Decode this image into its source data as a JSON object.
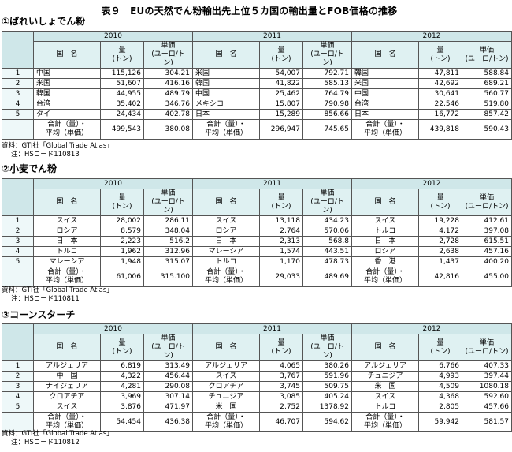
{
  "title": "表９　EUの天然でん粉輸出先上位５カ国の輸出量とFOB価格の推移",
  "years": [
    "2010",
    "2011",
    "2012"
  ],
  "headers": {
    "country": "国　名",
    "qty": "量\n(トン)",
    "price": "単価\n(ユーロ/トン)"
  },
  "total_label": "合計（量）・\n平均（単価）",
  "sections": [
    {
      "heading": "①ばれいしょでん粉",
      "rows": [
        {
          "rank": "1",
          "y2010": [
            "中国",
            "115,126",
            "304.21"
          ],
          "y2011": [
            "米国",
            "54,007",
            "792.71"
          ],
          "y2012": [
            "韓国",
            "47,811",
            "588.84"
          ]
        },
        {
          "rank": "2",
          "y2010": [
            "米国",
            "51,607",
            "416.16"
          ],
          "y2011": [
            "韓国",
            "41,822",
            "585.13"
          ],
          "y2012": [
            "米国",
            "42,692",
            "689.21"
          ]
        },
        {
          "rank": "3",
          "y2010": [
            "韓国",
            "44,955",
            "489.79"
          ],
          "y2011": [
            "中国",
            "25,462",
            "764.79"
          ],
          "y2012": [
            "中国",
            "30,641",
            "560.77"
          ]
        },
        {
          "rank": "4",
          "y2010": [
            "台湾",
            "35,402",
            "346.76"
          ],
          "y2011": [
            "メキシコ",
            "15,807",
            "790.98"
          ],
          "y2012": [
            "台湾",
            "22,546",
            "519.80"
          ]
        },
        {
          "rank": "5",
          "y2010": [
            "タイ",
            "24,434",
            "402.78"
          ],
          "y2011": [
            "日本",
            "15,289",
            "856.66"
          ],
          "y2012": [
            "日本",
            "16,772",
            "857.42"
          ]
        }
      ],
      "totals": {
        "y2010": [
          "499,543",
          "380.08"
        ],
        "y2011": [
          "296,947",
          "745.65"
        ],
        "y2012": [
          "439,818",
          "590.43"
        ]
      },
      "source": "資料：GTI社「Global Trade Atlas」",
      "note": "注：HSコード110813"
    },
    {
      "heading": "②小麦でん粉",
      "rows": [
        {
          "rank": "1",
          "y2010": [
            "スイス",
            "28,002",
            "286.11"
          ],
          "y2011": [
            "スイス",
            "13,118",
            "434.23"
          ],
          "y2012": [
            "スイス",
            "19,228",
            "412.61"
          ]
        },
        {
          "rank": "2",
          "y2010": [
            "ロシア",
            "8,579",
            "348.04"
          ],
          "y2011": [
            "ロシア",
            "2,764",
            "570.06"
          ],
          "y2012": [
            "トルコ",
            "4,172",
            "397.08"
          ]
        },
        {
          "rank": "3",
          "y2010": [
            "日　本",
            "2,223",
            "516.2"
          ],
          "y2011": [
            "日　本",
            "2,313",
            "568.8"
          ],
          "y2012": [
            "日　本",
            "2,728",
            "615.51"
          ]
        },
        {
          "rank": "4",
          "y2010": [
            "トルコ",
            "1,962",
            "312.96"
          ],
          "y2011": [
            "マレーシア",
            "1,574",
            "443.51"
          ],
          "y2012": [
            "ロシア",
            "2,638",
            "457.16"
          ]
        },
        {
          "rank": "5",
          "y2010": [
            "マレーシア",
            "1,948",
            "315.07"
          ],
          "y2011": [
            "トルコ",
            "1,170",
            "478.73"
          ],
          "y2012": [
            "香　港",
            "1,437",
            "400.20"
          ]
        }
      ],
      "totals": {
        "y2010": [
          "61,006",
          "315.100"
        ],
        "y2011": [
          "29,033",
          "489.69"
        ],
        "y2012": [
          "42,816",
          "455.00"
        ]
      },
      "source": "資料：GTI社「Global Trade Atlas」",
      "note": "注：HSコード110811"
    },
    {
      "heading": "③コーンスターチ",
      "rows": [
        {
          "rank": "1",
          "y2010": [
            "アルジェリア",
            "6,819",
            "313.49"
          ],
          "y2011": [
            "アルジェリア",
            "4,065",
            "380.26"
          ],
          "y2012": [
            "アルジェリア",
            "6,766",
            "407.33"
          ]
        },
        {
          "rank": "2",
          "y2010": [
            "中　国",
            "4,322",
            "456.44"
          ],
          "y2011": [
            "スイス",
            "3,767",
            "591.96"
          ],
          "y2012": [
            "チュニジア",
            "4,993",
            "397.44"
          ]
        },
        {
          "rank": "3",
          "y2010": [
            "ナイジェリア",
            "4,281",
            "290.08"
          ],
          "y2011": [
            "クロアチア",
            "3,745",
            "509.75"
          ],
          "y2012": [
            "米　国",
            "4,509",
            "1080.18"
          ]
        },
        {
          "rank": "4",
          "y2010": [
            "クロアチア",
            "3,969",
            "307.14"
          ],
          "y2011": [
            "チュニジア",
            "3,085",
            "405.24"
          ],
          "y2012": [
            "スイス",
            "4,368",
            "592.60"
          ]
        },
        {
          "rank": "5",
          "y2010": [
            "スイス",
            "3,876",
            "471.97"
          ],
          "y2011": [
            "米　国",
            "2,752",
            "1378.92"
          ],
          "y2012": [
            "トルコ",
            "2,805",
            "457.66"
          ]
        }
      ],
      "totals": {
        "y2010": [
          "54,454",
          "436.38"
        ],
        "y2011": [
          "46,707",
          "594.62"
        ],
        "y2012": [
          "59,942",
          "581.57"
        ]
      },
      "source": "資料：GTI社「Global Trade Atlas」",
      "note": "注：HSコード110812"
    }
  ]
}
